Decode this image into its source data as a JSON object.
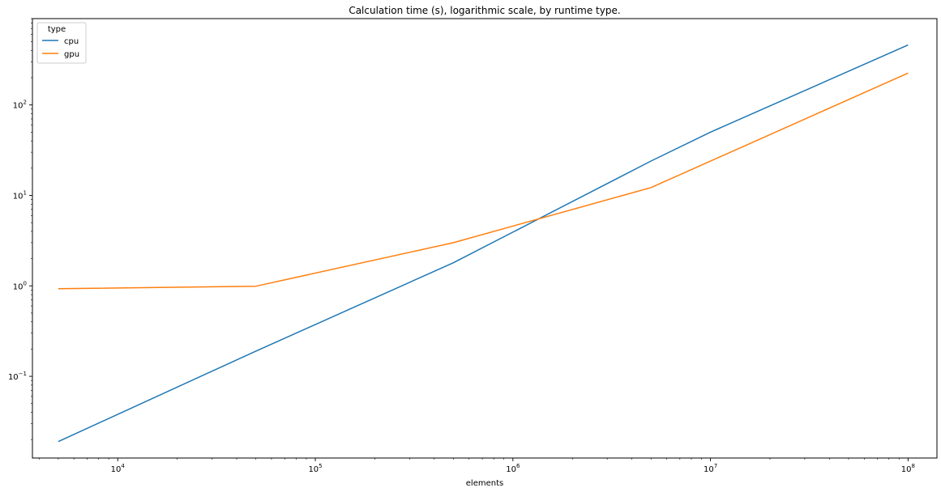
{
  "chart_data": {
    "type": "line",
    "title": "Calculation time (s), logarithmic scale, by runtime type.",
    "xlabel": "elements",
    "ylabel": "",
    "xscale": "log",
    "yscale": "log",
    "xlim": [
      3700,
      140000000
    ],
    "ylim": [
      0.0125,
      900
    ],
    "grid": false,
    "legend": {
      "title": "type",
      "position": "top-left"
    },
    "x_ticks": [
      {
        "value": 10000,
        "base": "10",
        "exp": "4"
      },
      {
        "value": 100000,
        "base": "10",
        "exp": "5"
      },
      {
        "value": 1000000,
        "base": "10",
        "exp": "6"
      },
      {
        "value": 10000000,
        "base": "10",
        "exp": "7"
      },
      {
        "value": 100000000,
        "base": "10",
        "exp": "8"
      }
    ],
    "y_ticks": [
      {
        "value": 0.1,
        "base": "10",
        "exp": "−1"
      },
      {
        "value": 1,
        "base": "10",
        "exp": "0"
      },
      {
        "value": 10,
        "base": "10",
        "exp": "1"
      },
      {
        "value": 100,
        "base": "10",
        "exp": "2"
      }
    ],
    "series": [
      {
        "name": "cpu",
        "color": "#1f77b4",
        "x": [
          5000,
          50000,
          500000,
          5000000,
          10000000,
          100000000
        ],
        "y": [
          0.019,
          0.19,
          1.8,
          24,
          50,
          460
        ]
      },
      {
        "name": "gpu",
        "color": "#ff7f0e",
        "x": [
          5000,
          50000,
          500000,
          5000000,
          100000000
        ],
        "y": [
          0.93,
          0.99,
          3.0,
          12.2,
          225
        ]
      }
    ]
  }
}
